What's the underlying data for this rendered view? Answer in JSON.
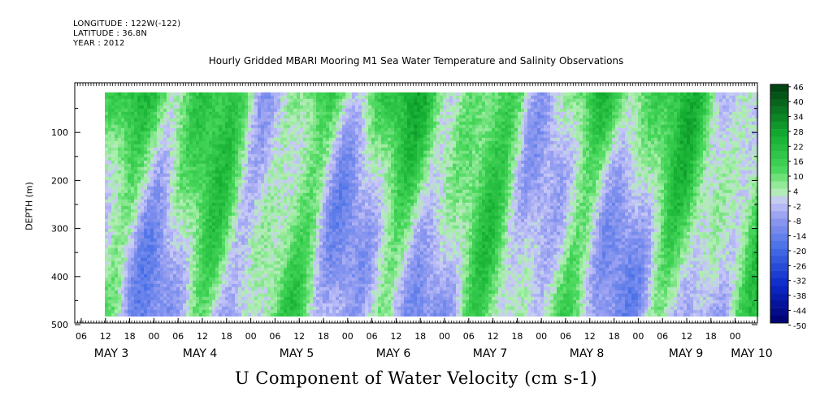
{
  "header": {
    "longitude": "LONGITUDE : 122W(-122)",
    "latitude": "LATITUDE : 36.8N",
    "year": "YEAR : 2012"
  },
  "chart_data": {
    "type": "heatmap",
    "title": "Hourly Gridded MBARI Mooring M1 Sea Water Temperature and Salinity Observations",
    "xlabel": "U Component of Water Velocity (cm s-1)",
    "ylabel": "DEPTH (m)",
    "yticks": [
      "100",
      "200",
      "300",
      "400",
      "500"
    ],
    "xticks_hours": [
      "06",
      "12",
      "18",
      "00",
      "06",
      "12",
      "18",
      "00",
      "06",
      "12",
      "18",
      "00",
      "06",
      "12",
      "18",
      "00",
      "06",
      "12",
      "18",
      "00",
      "06",
      "12",
      "18",
      "00",
      "06",
      "12",
      "18",
      "00"
    ],
    "day_labels": [
      "MAY  3",
      "MAY  4",
      "MAY  5",
      "MAY  6",
      "MAY  7",
      "MAY  8",
      "MAY  9",
      "MAY 10"
    ],
    "ylim": [
      500,
      20
    ],
    "colorbar": {
      "labels": [
        "46",
        "40",
        "34",
        "28",
        "22",
        "16",
        "10",
        "4",
        "-2",
        "-8",
        "-14",
        "-20",
        "-26",
        "-32",
        "-38",
        "-44",
        "-50"
      ],
      "range": [
        -50,
        46
      ],
      "step": 3
    },
    "data_coverage": {
      "start": "May 3 12:00",
      "end": "May 10 06:00",
      "depth_top_m": 20,
      "depth_bottom_m": 480
    }
  }
}
